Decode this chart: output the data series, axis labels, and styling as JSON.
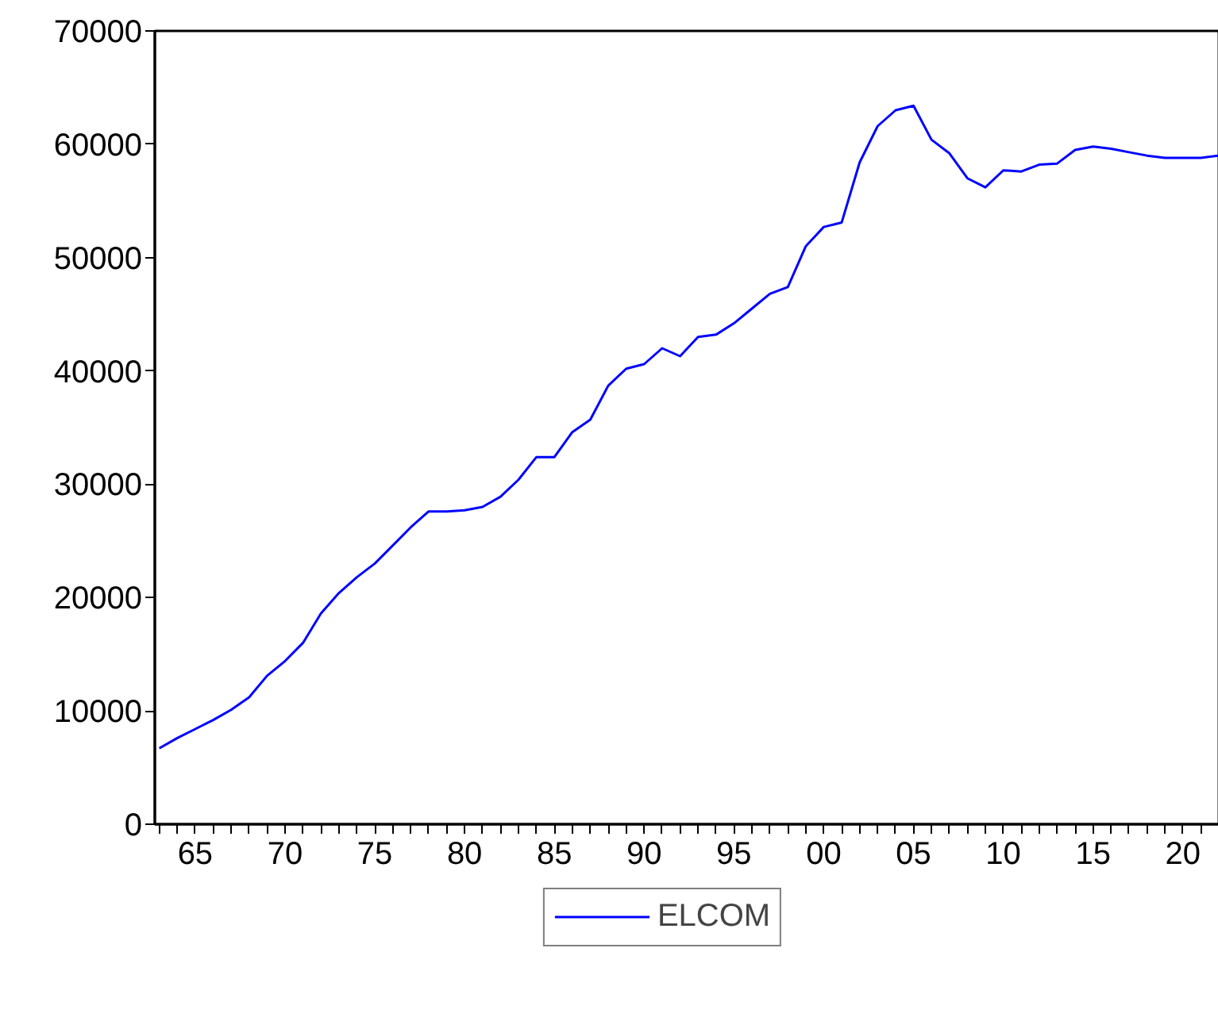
{
  "chart_data": {
    "type": "line",
    "x": [
      1963,
      1964,
      1965,
      1966,
      1967,
      1968,
      1969,
      1970,
      1971,
      1972,
      1973,
      1974,
      1975,
      1976,
      1977,
      1978,
      1979,
      1980,
      1981,
      1982,
      1983,
      1984,
      1985,
      1986,
      1987,
      1988,
      1989,
      1990,
      1991,
      1992,
      1993,
      1994,
      1995,
      1996,
      1997,
      1998,
      1999,
      2000,
      2001,
      2002,
      2003,
      2004,
      2005,
      2006,
      2007,
      2008,
      2009,
      2010,
      2011,
      2012,
      2013,
      2014,
      2015,
      2016,
      2017,
      2018,
      2019,
      2020,
      2021,
      2022
    ],
    "series": [
      {
        "name": "ELCOM",
        "color": "#0000ff",
        "values": [
          6700,
          7600,
          8400,
          9200,
          10100,
          11200,
          13100,
          14400,
          16000,
          18600,
          20400,
          21800,
          23000,
          24600,
          26200,
          27600,
          27600,
          27700,
          28000,
          28900,
          30400,
          32400,
          32400,
          34600,
          35700,
          38700,
          40200,
          40600,
          42000,
          41300,
          43000,
          43200,
          44200,
          45500,
          46800,
          47400,
          51000,
          52700,
          53100,
          58400,
          61600,
          63000,
          63400,
          60400,
          59200,
          57000,
          56200,
          57700,
          57600,
          58200,
          58300,
          59500,
          59800,
          59600,
          59300,
          59000,
          58800,
          58800,
          58800,
          59000
        ]
      }
    ],
    "xlim": [
      1962.75,
      2022
    ],
    "ylim": [
      0,
      70000
    ],
    "yticks": [
      0,
      10000,
      20000,
      30000,
      40000,
      50000,
      60000,
      70000
    ],
    "xticks": [
      {
        "value": 1963,
        "label": null
      },
      {
        "value": 1964,
        "label": null
      },
      {
        "value": 1965,
        "label": "65"
      },
      {
        "value": 1966,
        "label": null
      },
      {
        "value": 1967,
        "label": null
      },
      {
        "value": 1968,
        "label": null
      },
      {
        "value": 1969,
        "label": null
      },
      {
        "value": 1970,
        "label": "70"
      },
      {
        "value": 1971,
        "label": null
      },
      {
        "value": 1972,
        "label": null
      },
      {
        "value": 1973,
        "label": null
      },
      {
        "value": 1974,
        "label": null
      },
      {
        "value": 1975,
        "label": "75"
      },
      {
        "value": 1976,
        "label": null
      },
      {
        "value": 1977,
        "label": null
      },
      {
        "value": 1978,
        "label": null
      },
      {
        "value": 1979,
        "label": null
      },
      {
        "value": 1980,
        "label": "80"
      },
      {
        "value": 1981,
        "label": null
      },
      {
        "value": 1982,
        "label": null
      },
      {
        "value": 1983,
        "label": null
      },
      {
        "value": 1984,
        "label": null
      },
      {
        "value": 1985,
        "label": "85"
      },
      {
        "value": 1986,
        "label": null
      },
      {
        "value": 1987,
        "label": null
      },
      {
        "value": 1988,
        "label": null
      },
      {
        "value": 1989,
        "label": null
      },
      {
        "value": 1990,
        "label": "90"
      },
      {
        "value": 1991,
        "label": null
      },
      {
        "value": 1992,
        "label": null
      },
      {
        "value": 1993,
        "label": null
      },
      {
        "value": 1994,
        "label": null
      },
      {
        "value": 1995,
        "label": "95"
      },
      {
        "value": 1996,
        "label": null
      },
      {
        "value": 1997,
        "label": null
      },
      {
        "value": 1998,
        "label": null
      },
      {
        "value": 1999,
        "label": null
      },
      {
        "value": 2000,
        "label": "00"
      },
      {
        "value": 2001,
        "label": null
      },
      {
        "value": 2002,
        "label": null
      },
      {
        "value": 2003,
        "label": null
      },
      {
        "value": 2004,
        "label": null
      },
      {
        "value": 2005,
        "label": "05"
      },
      {
        "value": 2006,
        "label": null
      },
      {
        "value": 2007,
        "label": null
      },
      {
        "value": 2008,
        "label": null
      },
      {
        "value": 2009,
        "label": null
      },
      {
        "value": 2010,
        "label": "10"
      },
      {
        "value": 2011,
        "label": null
      },
      {
        "value": 2012,
        "label": null
      },
      {
        "value": 2013,
        "label": null
      },
      {
        "value": 2014,
        "label": null
      },
      {
        "value": 2015,
        "label": "15"
      },
      {
        "value": 2016,
        "label": null
      },
      {
        "value": 2017,
        "label": null
      },
      {
        "value": 2018,
        "label": null
      },
      {
        "value": 2019,
        "label": null
      },
      {
        "value": 2020,
        "label": "20"
      },
      {
        "value": 2021,
        "label": null
      },
      {
        "value": 2022,
        "label": null
      }
    ],
    "legend": "bottom",
    "grid": false,
    "line_style": "solid",
    "marker": "none"
  }
}
